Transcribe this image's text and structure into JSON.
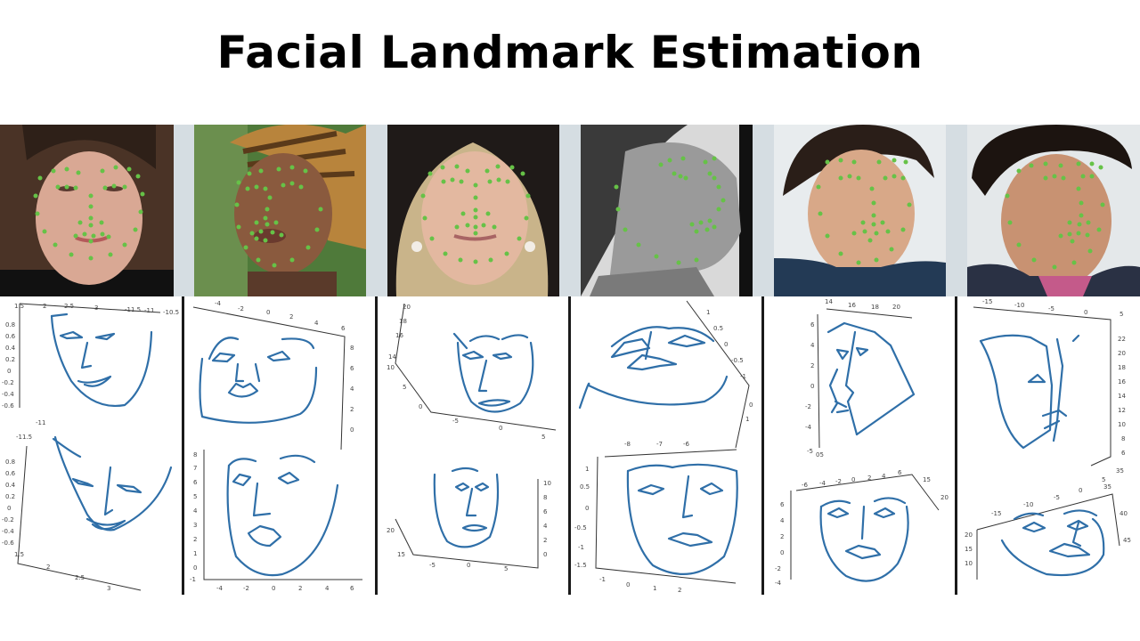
{
  "title": "Facial Landmark Estimation",
  "colors": {
    "landmark": "#66c247",
    "face_line": "#2f6fa8",
    "separator": "#1a1a1a"
  },
  "plots": [
    {
      "top_ticks": [
        "1.5",
        "2",
        "2.5",
        "3",
        "-11.5",
        "-11",
        "-10.5"
      ],
      "top_side": [
        "0.8",
        "0.6",
        "0.4",
        "0.2",
        "0",
        "-0.2",
        "-0.4",
        "-0.6"
      ],
      "bottom_side": [
        "0.8",
        "0.6",
        "0.4",
        "0.2",
        "0",
        "-0.2",
        "-0.4",
        "-0.6"
      ],
      "bottom_ticks": [
        "1.5",
        "2",
        "2.5",
        "3"
      ],
      "bottom_top_labels": [
        "-11",
        "-11.5"
      ]
    },
    {
      "top_ticks": [
        "-4",
        "-2",
        "0",
        "2",
        "4",
        "6"
      ],
      "top_side": [
        "8",
        "6",
        "4",
        "2",
        "0"
      ],
      "bottom_side": [
        "8",
        "7",
        "6",
        "5",
        "4",
        "3",
        "2",
        "1",
        "0",
        "-1"
      ],
      "bottom_ticks": [
        "-4",
        "-2",
        "0",
        "2",
        "4",
        "6"
      ]
    },
    {
      "top_side": [
        "20",
        "18",
        "16",
        "14",
        "10",
        "5",
        "0"
      ],
      "top_ticks": [
        "-5",
        "0",
        "5"
      ],
      "bottom_side": [
        "10",
        "8",
        "6",
        "4",
        "2",
        "0"
      ],
      "bottom_left": [
        "20",
        "15"
      ],
      "bottom_ticks": [
        "-5",
        "0",
        "5"
      ]
    },
    {
      "top_side": [
        "1",
        "0.5",
        "0",
        "-0.5",
        "-1",
        "0",
        "1"
      ],
      "bottom_top": [
        "-8",
        "-7",
        "-6"
      ],
      "bottom_side": [
        "1",
        "0.5",
        "0",
        "-0.5",
        "-1",
        "-1.5"
      ],
      "bottom_ticks": [
        "-1",
        "0",
        "1",
        "2"
      ]
    },
    {
      "top_ticks": [
        "14",
        "16",
        "18",
        "20"
      ],
      "top_side": [
        "6",
        "4",
        "2",
        "0",
        "-2",
        "-4",
        "-5"
      ],
      "top_corner": "05",
      "bottom_top": [
        "-6",
        "-4",
        "-2",
        "0",
        "2",
        "4",
        "6"
      ],
      "bottom_right": [
        "15",
        "20"
      ],
      "bottom_side": [
        "6",
        "4",
        "2",
        "0",
        "-2",
        "-4"
      ]
    },
    {
      "top_ticks": [
        "-15",
        "-10",
        "-5",
        "0",
        "5"
      ],
      "top_side": [
        "22",
        "20",
        "18",
        "16",
        "14",
        "12",
        "10",
        "8",
        "6"
      ],
      "top_corner": [
        "35",
        "5"
      ],
      "bottom_top": [
        "-15",
        "-10",
        "-5",
        "0",
        "35"
      ],
      "bottom_right": [
        "40",
        "45"
      ],
      "bottom_side": [
        "20",
        "15",
        "10"
      ]
    }
  ]
}
